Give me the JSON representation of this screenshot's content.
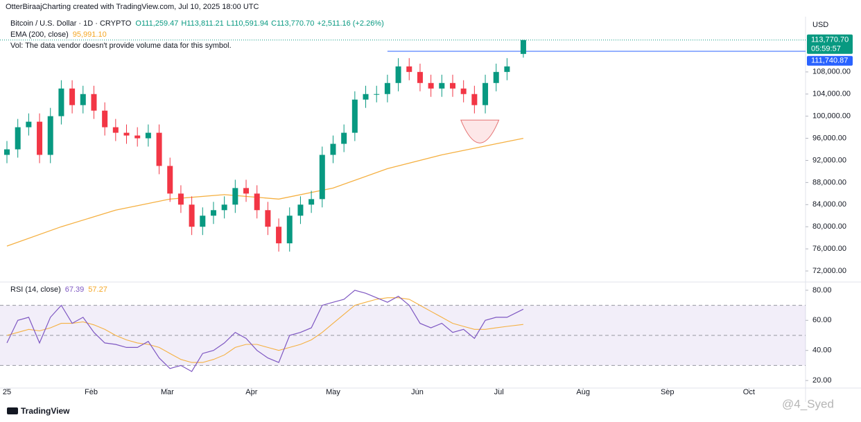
{
  "chart_data": {
    "type": "candlestick",
    "attribution": "OtterBiraajCharting created with TradingView.com, Jul 10, 2025 18:00 UTC",
    "symbol": "Bitcoin / U.S. Dollar · 1D · CRYPTO",
    "ohlc_labels": [
      "O111,259.47",
      "H113,811.21",
      "L110,591.94",
      "C113,770.70"
    ],
    "change": "+2,511.16 (+2.26%)",
    "volume_note": "Vol: The data vendor doesn't provide volume data for this symbol.",
    "currency": "USD",
    "up_color": "#089981",
    "down_color": "#f23645",
    "x": [
      0,
      4,
      8,
      12,
      16,
      20,
      24,
      28,
      32,
      36,
      40,
      44,
      48,
      52,
      56,
      60,
      64,
      68,
      72,
      76,
      80,
      84,
      88,
      92,
      96,
      100,
      104,
      108,
      112,
      116,
      120,
      124,
      128,
      132,
      136,
      140,
      144,
      148,
      152,
      156,
      160,
      164,
      168,
      172,
      176,
      180,
      184,
      190
    ],
    "opens": [
      93000,
      94000,
      98000,
      99000,
      93000,
      100000,
      105000,
      102000,
      104000,
      101000,
      98000,
      97000,
      96500,
      96000,
      97000,
      91000,
      86000,
      84000,
      80000,
      82000,
      83000,
      84000,
      87000,
      86000,
      83000,
      80000,
      77000,
      82000,
      84000,
      85000,
      93000,
      95000,
      97000,
      103000,
      104000,
      104000,
      106000,
      109000,
      108000,
      106000,
      105000,
      106000,
      105000,
      104000,
      102000,
      106000,
      108000,
      111259.47
    ],
    "highs": [
      95500,
      99500,
      100500,
      100500,
      101500,
      106500,
      106500,
      105500,
      105500,
      102500,
      99500,
      98500,
      98000,
      98500,
      98500,
      92500,
      87500,
      85500,
      83500,
      84500,
      85500,
      88500,
      88500,
      87500,
      84500,
      81500,
      83500,
      85500,
      86500,
      94500,
      96500,
      98500,
      104500,
      105500,
      105500,
      107500,
      110500,
      110500,
      109500,
      107500,
      107500,
      107500,
      106500,
      105500,
      107500,
      109500,
      110500,
      113811.21
    ],
    "lows": [
      91500,
      92500,
      96500,
      91500,
      91500,
      98500,
      100500,
      100500,
      99500,
      96500,
      95500,
      95000,
      94500,
      94500,
      89500,
      84500,
      82500,
      78500,
      78500,
      80500,
      81500,
      82500,
      84500,
      81500,
      78500,
      75500,
      75500,
      80500,
      82500,
      83500,
      91500,
      93500,
      95500,
      101500,
      102500,
      102500,
      104500,
      106500,
      104500,
      103500,
      103500,
      103500,
      102500,
      100500,
      100500,
      104500,
      106500,
      110591.94
    ],
    "closes": [
      94000,
      98000,
      99000,
      93000,
      100000,
      105000,
      102000,
      104000,
      101000,
      98000,
      97000,
      96500,
      96000,
      97000,
      91000,
      86000,
      84000,
      80000,
      82000,
      83000,
      84000,
      87000,
      86000,
      83000,
      80000,
      77000,
      82000,
      84000,
      85000,
      93000,
      95000,
      97000,
      103000,
      104000,
      104000,
      106000,
      109000,
      108000,
      106000,
      105000,
      106000,
      105000,
      104000,
      102000,
      106000,
      108000,
      109000,
      113770.7
    ],
    "xlim": [
      0,
      290
    ],
    "xticks": [
      {
        "value": 0,
        "label": "25"
      },
      {
        "value": 31,
        "label": "Feb"
      },
      {
        "value": 59,
        "label": "Mar"
      },
      {
        "value": 90,
        "label": "Apr"
      },
      {
        "value": 120,
        "label": "May"
      },
      {
        "value": 151,
        "label": "Jun"
      },
      {
        "value": 181,
        "label": "Jul"
      },
      {
        "value": 212,
        "label": "Aug"
      },
      {
        "value": 243,
        "label": "Sep"
      },
      {
        "value": 273,
        "label": "Oct"
      }
    ],
    "ylim": [
      70000,
      116000
    ],
    "yticks": [
      {
        "value": 72000,
        "label": "72,000.00"
      },
      {
        "value": 76000,
        "label": "76,000.00"
      },
      {
        "value": 80000,
        "label": "80,000.00"
      },
      {
        "value": 84000,
        "label": "84,000.00"
      },
      {
        "value": 88000,
        "label": "88,000.00"
      },
      {
        "value": 92000,
        "label": "92,000.00"
      },
      {
        "value": 96000,
        "label": "96,000.00"
      },
      {
        "value": 100000,
        "label": "100,000.00"
      },
      {
        "value": 104000,
        "label": "104,000.00"
      },
      {
        "value": 108000,
        "label": "108,000.00"
      }
    ],
    "last_price": {
      "value": 113770.7,
      "label": "113,770.70"
    },
    "countdown": "05:59:57",
    "level": {
      "value": 111740.87,
      "label": "111,740.87",
      "start": 140,
      "color": "#2962ff"
    },
    "ema": {
      "name": "EMA (200, close)",
      "value_label": "95,991.10",
      "color": "#f5b041",
      "x": [
        0,
        20,
        40,
        60,
        80,
        100,
        120,
        140,
        160,
        180,
        190
      ],
      "values": [
        76500,
        80000,
        83000,
        85000,
        85800,
        85000,
        87000,
        90500,
        93000,
        95000,
        95991.1
      ]
    },
    "rsi": {
      "name": "RSI (14, close)",
      "value_label": "67.39",
      "ma_value_label": "57.27",
      "color": "#7e57c2",
      "ma_color": "#f5b041",
      "values": [
        45,
        60,
        62,
        45,
        62,
        70,
        58,
        62,
        52,
        45,
        44,
        42,
        42,
        46,
        35,
        28,
        30,
        26,
        38,
        40,
        45,
        52,
        48,
        40,
        35,
        32,
        50,
        52,
        55,
        70,
        72,
        74,
        80,
        78,
        75,
        72,
        76,
        70,
        58,
        55,
        58,
        52,
        54,
        48,
        60,
        62,
        62,
        67.39
      ],
      "ma_values": [
        50,
        52,
        54,
        53,
        55,
        58,
        58,
        59,
        57,
        54,
        50,
        47,
        45,
        44,
        42,
        38,
        34,
        32,
        32,
        34,
        37,
        42,
        44,
        44,
        42,
        40,
        42,
        44,
        47,
        52,
        58,
        64,
        70,
        72,
        74,
        75,
        75,
        74,
        70,
        66,
        62,
        58,
        56,
        54,
        54,
        55,
        56,
        57.27
      ],
      "ylim": [
        15,
        85
      ],
      "yticks": [
        {
          "value": 20,
          "label": "20.00"
        },
        {
          "value": 40,
          "label": "40.00"
        },
        {
          "value": 60,
          "label": "60.00"
        },
        {
          "value": 80,
          "label": "80.00"
        }
      ],
      "bands": [
        30,
        50,
        70
      ]
    },
    "brand": "TradingView",
    "watermark": "@4_Syed"
  }
}
